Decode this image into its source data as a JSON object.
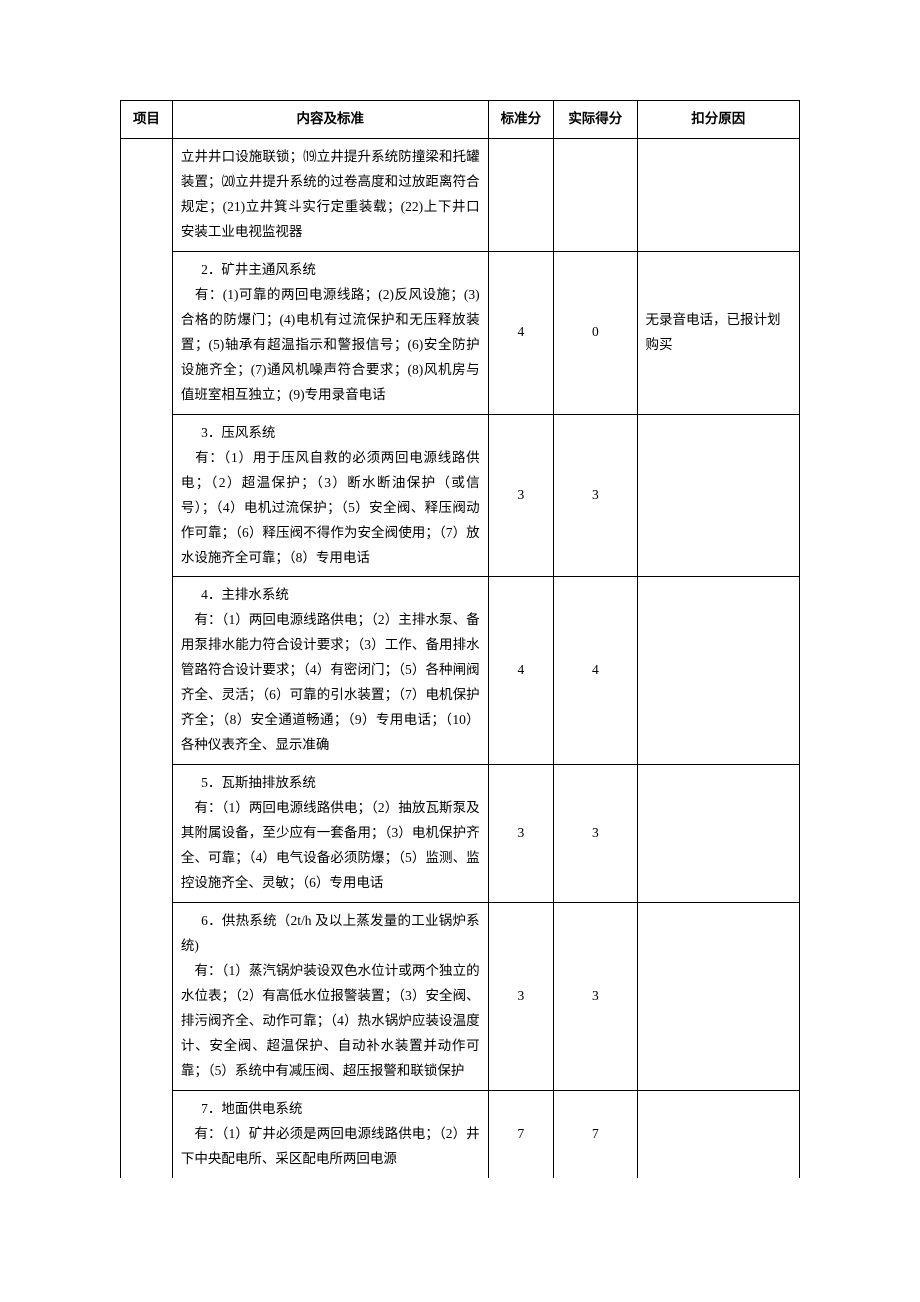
{
  "headers": {
    "project": "项目",
    "content": "内容及标准",
    "std_score": "标准分",
    "actual_score": "实际得分",
    "reason": "扣分原因"
  },
  "rows": [
    {
      "project": "",
      "content": "立井井口设施联锁；⒆立井提升系统防撞梁和托罐装置；⒇立井提升系统的过卷高度和过放距离符合规定；(21)立井箕斗实行定重装载；(22)上下井口安装工业电视监视器",
      "std": "",
      "actual": "",
      "reason": "",
      "no_top": true
    },
    {
      "project": "",
      "content": "2．矿井主通风系统|　有：(1)可靠的两回电源线路；(2)反风设施；(3)合格的防爆门；(4)电机有过流保护和无压释放装置；(5)轴承有超温指示和警报信号；(6)安全防护设施齐全；(7)通风机噪声符合要求；(8)风机房与值班室相互独立；(9)专用录音电话",
      "std": "4",
      "actual": "0",
      "reason": "无录音电话，已报计划购买"
    },
    {
      "project": "",
      "content": "3．压风系统|　有：（1）用于压风自救的必须两回电源线路供电；（2）超温保护；（3）断水断油保护（或信号）；（4）电机过流保护；（5）安全阀、释压阀动作可靠；（6）释压阀不得作为安全阀使用；（7）放水设施齐全可靠；（8）专用电话",
      "std": "3",
      "actual": "3",
      "reason": ""
    },
    {
      "project": "",
      "content": "4．主排水系统|　有：（1）两回电源线路供电；（2）主排水泵、备用泵排水能力符合设计要求；（3）工作、备用排水管路符合设计要求；（4）有密闭门；（5）各种闸阀齐全、灵活；（6）可靠的引水装置；（7）电机保护齐全；（8）安全通道畅通；（9）专用电话；（10）各种仪表齐全、显示准确",
      "std": "4",
      "actual": "4",
      "reason": ""
    },
    {
      "project": "",
      "content": "5．瓦斯抽排放系统|　有：（1）两回电源线路供电；（2）抽放瓦斯泵及其附属设备，至少应有一套备用；（3）电机保护齐全、可靠；（4）电气设备必须防爆；（5）监测、监控设施齐全、灵敏；（6）专用电话",
      "std": "3",
      "actual": "3",
      "reason": ""
    },
    {
      "project": "",
      "content": "6．供热系统（2t/h 及以上蒸发量的工业锅炉系统)|　有：（1）蒸汽锅炉装设双色水位计或两个独立的水位表；（2）有高低水位报警装置；（3）安全阀、排污阀齐全、动作可靠；（4）热水锅炉应装设温度计、安全阀、超温保护、自动补水装置并动作可靠；（5）系统中有减压阀、超压报警和联锁保护",
      "std": "3",
      "actual": "3",
      "reason": ""
    },
    {
      "project": "",
      "content": "7．地面供电系统|　有：（1）矿井必须是两回电源线路供电；（2）井下中央配电所、采区配电所两回电源",
      "std": "7",
      "actual": "7",
      "reason": "",
      "no_bottom": true
    }
  ],
  "style": {
    "border_color": "#000000",
    "background": "#ffffff",
    "font_size": 13.5,
    "line_height": 1.85
  }
}
